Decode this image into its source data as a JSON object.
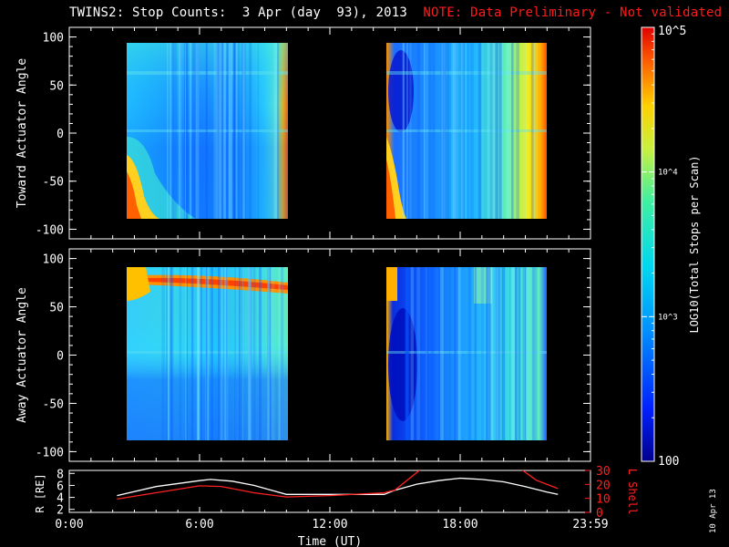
{
  "title": {
    "main": "TWINS2: Stop Counts:  3 Apr (day  93), 2013",
    "note": "NOTE: Data Preliminary - Not validated"
  },
  "date_stamp": "10 Apr 13",
  "colorbar": {
    "label": "LOG10(Total Stops per Scan)",
    "tick_labels": [
      "10^5",
      "10^4",
      "10^3",
      "100"
    ],
    "range": [
      100,
      100000
    ],
    "scale": "log"
  },
  "chart_data": [
    {
      "type": "heatmap",
      "panel": "toward",
      "ylabel": "Toward Actuator Angle",
      "yticks": [
        "100",
        "50",
        "0",
        "-50",
        "-100"
      ],
      "ylim": [
        -110,
        110
      ],
      "x_ticks": [
        "0:00",
        "6:00",
        "12:00",
        "18:00",
        "23:59"
      ],
      "x_range_hours": [
        0,
        24
      ],
      "data_intervals_hours": [
        [
          2.2,
          9.9
        ],
        [
          14.6,
          22.3
        ]
      ],
      "angle_range": [
        -88,
        90
      ]
    },
    {
      "type": "heatmap",
      "panel": "away",
      "ylabel": "Away Actuator Angle",
      "yticks": [
        "100",
        "50",
        "0",
        "-50",
        "-100"
      ],
      "ylim": [
        -110,
        110
      ],
      "x_ticks": [
        "0:00",
        "6:00",
        "12:00",
        "18:00",
        "23:59"
      ],
      "x_range_hours": [
        0,
        24
      ],
      "data_intervals_hours": [
        [
          2.2,
          9.9
        ],
        [
          14.6,
          22.3
        ]
      ],
      "angle_range": [
        -88,
        90
      ]
    },
    {
      "type": "line",
      "panel": "ephemeris",
      "xlabel": "Time (UT)",
      "x_ticks": [
        "0:00",
        "6:00",
        "12:00",
        "18:00",
        "23:59"
      ],
      "y_left": {
        "label": "R [RE]",
        "ticks": [
          "2",
          "4",
          "6",
          "8"
        ],
        "lim": [
          1.5,
          8.5
        ]
      },
      "y_right": {
        "label": "L Shell",
        "ticks": [
          "0",
          "10",
          "20",
          "30"
        ],
        "lim": [
          0,
          30
        ],
        "color": "#ff2020"
      },
      "series": [
        {
          "axis": "left",
          "color": "#ffffff",
          "x": [
            2.2,
            4.0,
            6.0,
            6.5,
            7.5,
            8.5,
            9.5,
            10.0,
            12.0,
            14.5,
            15.0,
            16.0,
            17.0,
            18.0,
            19.0,
            20.0,
            21.0,
            22.0,
            22.5
          ],
          "y": [
            4.3,
            5.8,
            6.8,
            7.0,
            6.7,
            6.0,
            5.0,
            4.5,
            4.5,
            4.5,
            5.2,
            6.2,
            6.8,
            7.2,
            7.0,
            6.6,
            5.8,
            4.9,
            4.5
          ]
        },
        {
          "axis": "right",
          "color": "#ff2020",
          "x": [
            2.2,
            4.0,
            6.0,
            7.0,
            8.5,
            9.5,
            10.0,
            12.0,
            14.5,
            15.0,
            15.8,
            16.2
          ],
          "y": [
            9.5,
            14.0,
            19.0,
            18.5,
            14.0,
            12.0,
            11.0,
            12.0,
            14.0,
            16.0,
            26.0,
            31.0
          ]
        },
        {
          "axis": "right",
          "color": "#ff2020",
          "x": [
            20.8,
            21.5,
            22.5
          ],
          "y": [
            31.0,
            23.0,
            17.0
          ]
        }
      ]
    }
  ]
}
